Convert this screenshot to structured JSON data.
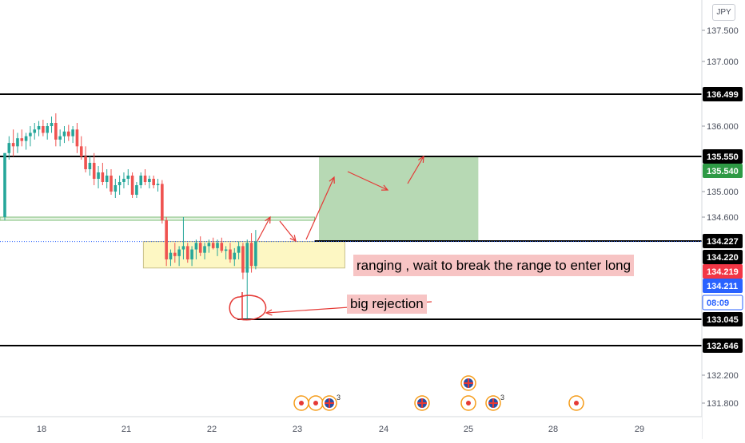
{
  "currency_label": "JPY",
  "annotations": {
    "range_note": "ranging , wait to break the range to enter long",
    "rejection_note": "big rejection"
  },
  "colors": {
    "up": "#26a69a",
    "down": "#ef5350",
    "level_line": "#000000",
    "entry_zone_fill": "#b7d9b4",
    "range_box_fill": "#fdf7c3",
    "note_background": "#f7c4c4",
    "arrow": "#e53935",
    "price_tag_green": "#2e9a45",
    "price_tag_red": "#f23645",
    "price_tag_blue": "#2962ff"
  },
  "chart_data": {
    "type": "candlestick",
    "title": "",
    "symbol_currency": "JPY",
    "x_axis": {
      "tick_labels": [
        "18",
        "21",
        "22",
        "23",
        "24",
        "25",
        "28",
        "29"
      ],
      "range": [
        "17",
        "29.75"
      ]
    },
    "y_axis": {
      "tick_labels": [
        "137.500",
        "137.000",
        "136.000",
        "135.000",
        "134.600",
        "132.200",
        "131.800"
      ],
      "range": [
        131.6,
        137.7
      ]
    },
    "price_tags": [
      {
        "value": "136.499",
        "style": "black"
      },
      {
        "value": "135.550",
        "style": "black"
      },
      {
        "value": "135.540",
        "style": "green"
      },
      {
        "value": "134.227",
        "style": "black"
      },
      {
        "value": "134.220",
        "style": "black"
      },
      {
        "value": "134.219",
        "style": "red"
      },
      {
        "value": "134.211",
        "style": "blue"
      },
      {
        "value": "08:09",
        "style": "blue-outline"
      },
      {
        "value": "133.045",
        "style": "black"
      },
      {
        "value": "132.646",
        "style": "black"
      }
    ],
    "horizontal_levels": [
      136.499,
      135.55,
      134.227,
      133.045,
      132.646
    ],
    "support_band": [
      134.55,
      134.6
    ],
    "entry_zone": {
      "x": [
        "23.25",
        "25.35"
      ],
      "y": [
        134.227,
        135.55
      ]
    },
    "range_box": {
      "x": [
        "21.2",
        "23.55"
      ],
      "y": [
        133.82,
        134.22
      ]
    },
    "rejection_circle": {
      "x": "22.35",
      "y": 133.3
    },
    "current_price_line": 134.219,
    "candles_ohlc": [
      [
        134.6,
        135.6,
        134.55,
        135.6
      ],
      [
        135.6,
        135.85,
        135.5,
        135.75
      ],
      [
        135.75,
        135.95,
        135.55,
        135.7
      ],
      [
        135.7,
        135.9,
        135.6,
        135.82
      ],
      [
        135.82,
        135.95,
        135.7,
        135.78
      ],
      [
        135.78,
        135.9,
        135.65,
        135.85
      ],
      [
        135.85,
        136.0,
        135.7,
        135.9
      ],
      [
        135.9,
        136.05,
        135.8,
        135.95
      ],
      [
        135.95,
        136.08,
        135.85,
        136.0
      ],
      [
        136.0,
        136.1,
        135.85,
        135.9
      ],
      [
        135.9,
        136.05,
        135.8,
        136.0
      ],
      [
        136.0,
        136.15,
        135.9,
        136.05
      ],
      [
        136.05,
        136.2,
        135.7,
        135.8
      ],
      [
        135.8,
        135.95,
        135.7,
        135.85
      ],
      [
        135.85,
        136.0,
        135.75,
        135.92
      ],
      [
        135.92,
        136.02,
        135.78,
        135.85
      ],
      [
        135.85,
        136.0,
        135.75,
        135.95
      ],
      [
        135.95,
        136.05,
        135.6,
        135.7
      ],
      [
        135.7,
        135.85,
        135.5,
        135.55
      ],
      [
        135.55,
        135.7,
        135.3,
        135.35
      ],
      [
        135.35,
        135.55,
        135.25,
        135.45
      ],
      [
        135.45,
        135.6,
        135.1,
        135.2
      ],
      [
        135.2,
        135.4,
        135.05,
        135.3
      ],
      [
        135.3,
        135.45,
        135.1,
        135.15
      ],
      [
        135.15,
        135.35,
        135.05,
        135.25
      ],
      [
        135.25,
        135.35,
        134.95,
        135.0
      ],
      [
        135.0,
        135.2,
        134.9,
        135.1
      ],
      [
        135.1,
        135.25,
        134.95,
        135.15
      ],
      [
        135.15,
        135.3,
        135.05,
        135.2
      ],
      [
        135.2,
        135.35,
        135.1,
        135.25
      ],
      [
        135.25,
        135.3,
        134.9,
        134.95
      ],
      [
        134.95,
        135.15,
        134.9,
        135.1
      ],
      [
        135.1,
        135.3,
        135.05,
        135.25
      ],
      [
        135.25,
        135.35,
        135.1,
        135.15
      ],
      [
        135.15,
        135.25,
        135.05,
        135.2
      ],
      [
        135.2,
        135.25,
        135.05,
        135.1
      ],
      [
        135.1,
        135.2,
        135.0,
        135.12
      ],
      [
        135.12,
        135.18,
        134.5,
        134.55
      ],
      [
        134.55,
        134.6,
        133.85,
        133.95
      ],
      [
        133.95,
        134.1,
        133.85,
        134.05
      ],
      [
        134.05,
        134.2,
        133.9,
        134.0
      ],
      [
        134.0,
        134.15,
        133.85,
        134.1
      ],
      [
        134.1,
        134.6,
        133.95,
        134.15
      ],
      [
        134.15,
        134.2,
        133.9,
        133.95
      ],
      [
        133.95,
        134.15,
        133.85,
        134.1
      ],
      [
        134.1,
        134.25,
        133.95,
        134.2
      ],
      [
        134.2,
        134.3,
        134.0,
        134.05
      ],
      [
        134.05,
        134.2,
        133.95,
        134.15
      ],
      [
        134.15,
        134.25,
        134.05,
        134.2
      ],
      [
        134.2,
        134.28,
        134.1,
        134.12
      ],
      [
        134.12,
        134.25,
        134.0,
        134.2
      ],
      [
        134.2,
        134.28,
        134.05,
        134.08
      ],
      [
        134.08,
        134.15,
        133.95,
        134.1
      ],
      [
        134.1,
        134.2,
        133.9,
        133.95
      ],
      [
        133.95,
        134.12,
        133.85,
        134.05
      ],
      [
        134.05,
        134.22,
        133.95,
        134.15
      ],
      [
        134.15,
        134.2,
        133.65,
        133.75
      ],
      [
        133.75,
        134.25,
        133.05,
        134.2
      ],
      [
        134.2,
        134.35,
        133.75,
        133.85
      ],
      [
        133.85,
        134.4,
        133.8,
        134.22
      ]
    ]
  }
}
